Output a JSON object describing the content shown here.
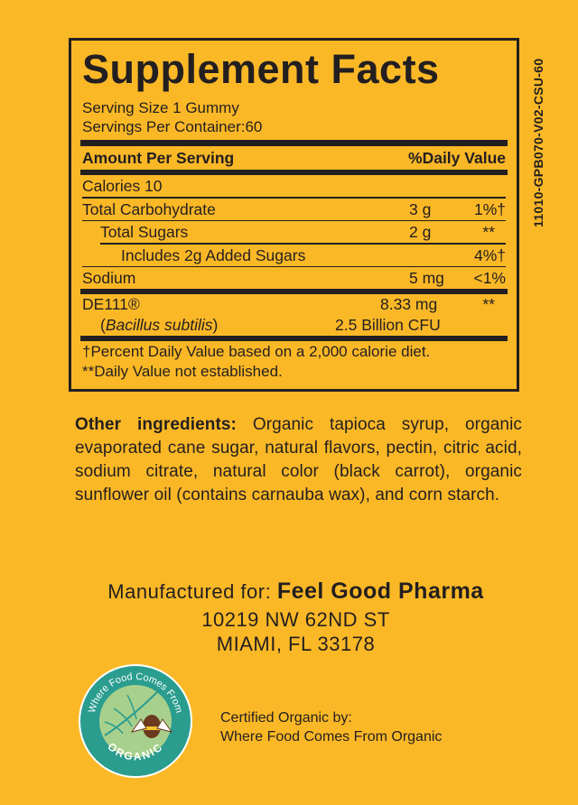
{
  "title": "Supplement Facts",
  "serving_size": "Serving Size 1 Gummy",
  "servings_per_container": "Servings Per Container:60",
  "header": {
    "amount": "Amount Per Serving",
    "dv": "%Daily Value"
  },
  "rows": [
    {
      "name": "Calories  10",
      "amount": "",
      "dv": ""
    },
    {
      "name": "Total Carbohydrate",
      "amount": "3 g",
      "dv": "1%†"
    },
    {
      "name": "Total Sugars",
      "amount": "2 g",
      "dv": "**"
    },
    {
      "name": "Includes 2g Added Sugars",
      "amount": "",
      "dv": "4%†"
    },
    {
      "name": "Sodium",
      "amount": "5 mg",
      "dv": "<1%"
    }
  ],
  "probiotic": {
    "name": "DE111®",
    "species_open": "(",
    "species": "Bacillus subtilis",
    "species_close": ")",
    "amount": "8.33 mg",
    "cfu": "2.5 Billion CFU",
    "dv": "**"
  },
  "footnotes": [
    "†Percent Daily Value based on a 2,000 calorie diet.",
    "**Daily Value not established."
  ],
  "product_code": "11010-GPB070-V02-CSU-60",
  "other_ingredients": {
    "label": "Other ingredients:",
    "text": " Organic tapioca syrup, organic evaporated cane sugar, natural flavors, pectin, citric acid, sodium citrate, natural color (black carrot), organic sunflower oil (contains carnauba wax), and corn starch."
  },
  "manufacturer": {
    "prefix": "Manufactured for: ",
    "name": "Feel Good Pharma",
    "address1": "10219 NW 62ND ST",
    "address2": "MIAMI, FL 33178"
  },
  "logo": {
    "text_top": "Where Food Comes From",
    "text_bottom": "ORGANIC",
    "colors": {
      "ring": "#2a9d8f",
      "leaf": "#a8d08d"
    }
  },
  "certification": {
    "line1": "Certified Organic by:",
    "line2": "Where Food Comes From Organic"
  },
  "colors": {
    "background": "#FBB826",
    "ink": "#231f20"
  }
}
